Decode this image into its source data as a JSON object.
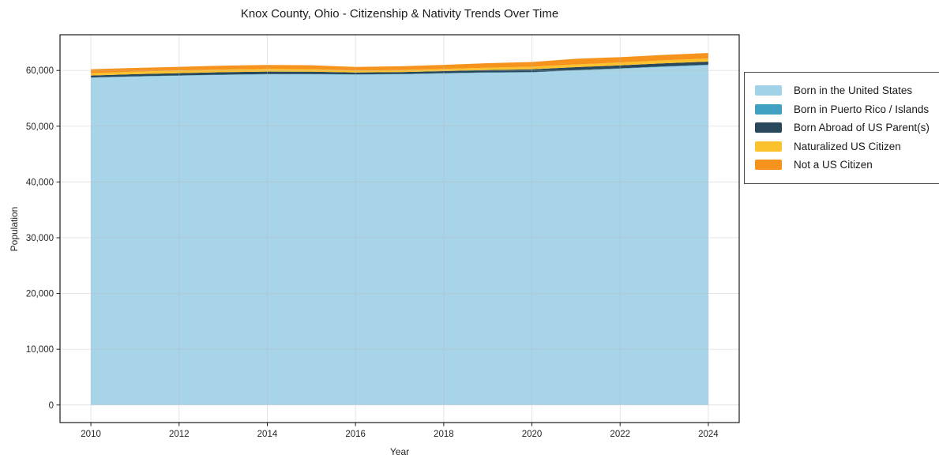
{
  "figure": {
    "title": "Knox County, Ohio - Citizenship & Nativity Trends Over Time",
    "xlabel": "Year",
    "ylabel": "Population"
  },
  "chart_data": {
    "type": "area",
    "stacked": true,
    "title": "Knox County, Ohio - Citizenship & Nativity Trends Over Time",
    "xlabel": "Year",
    "ylabel": "Population",
    "grid": true,
    "legend_position": "right-outside",
    "xlim": [
      2009.3,
      2024.7
    ],
    "ylim": [
      -3150,
      66400
    ],
    "xticks": [
      2010,
      2012,
      2014,
      2016,
      2018,
      2020,
      2022,
      2024
    ],
    "yticks": [
      0,
      10000,
      20000,
      30000,
      40000,
      50000,
      60000
    ],
    "x": [
      2010,
      2011,
      2012,
      2013,
      2014,
      2015,
      2016,
      2017,
      2018,
      2019,
      2020,
      2021,
      2022,
      2023,
      2024
    ],
    "series": [
      {
        "name": "Born in the United States",
        "color": "#a2d2e7",
        "values": [
          58700,
          58900,
          59050,
          59200,
          59300,
          59300,
          59250,
          59300,
          59450,
          59600,
          59650,
          60000,
          60300,
          60650,
          60950
        ]
      },
      {
        "name": "Born in Puerto Rico / Islands",
        "color": "#3fa0c1",
        "values": [
          40,
          45,
          50,
          55,
          55,
          50,
          50,
          55,
          60,
          60,
          65,
          70,
          75,
          85,
          90
        ]
      },
      {
        "name": "Born Abroad of US Parent(s)",
        "color": "#29485c",
        "values": [
          350,
          390,
          420,
          430,
          440,
          430,
          340,
          350,
          380,
          420,
          480,
          520,
          530,
          540,
          540
        ]
      },
      {
        "name": "Naturalized US Citizen",
        "color": "#fcc22d",
        "values": [
          420,
          440,
          470,
          480,
          470,
          450,
          340,
          360,
          390,
          430,
          470,
          500,
          520,
          540,
          560
        ]
      },
      {
        "name": "Not a US Citizen",
        "color": "#f6931d",
        "values": [
          710,
          680,
          660,
          700,
          720,
          700,
          650,
          680,
          720,
          790,
          850,
          1010,
          960,
          970,
          990
        ]
      }
    ]
  }
}
